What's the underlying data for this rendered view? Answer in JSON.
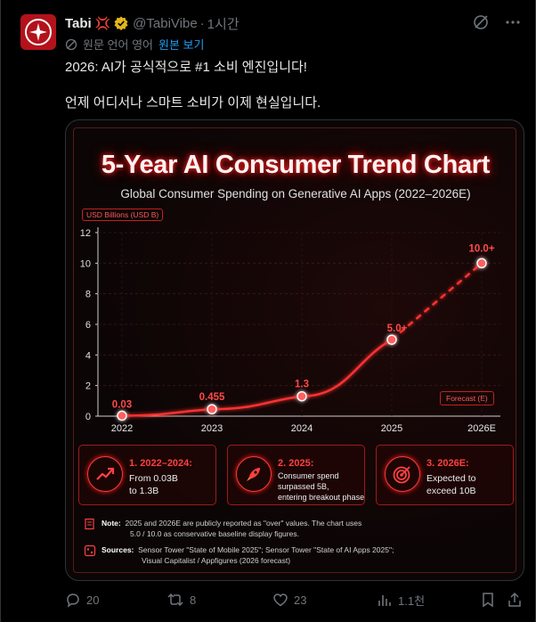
{
  "tweet": {
    "display_name": "Tabi",
    "name_emoji": "💢",
    "handle": "@TabiVibe",
    "separator": "·",
    "time": "1시간",
    "translate": {
      "text": "원문 언어 영어",
      "link": "원본 보기"
    },
    "line1": "2026: AI가 공식적으로 #1 소비 엔진입니다!",
    "line2": "언제 어디서나 스마트 소비가 이제 현실입니다."
  },
  "chart_data": {
    "type": "line",
    "title": "5-Year AI Consumer Trend Chart",
    "subtitle": "Global Consumer Spending on Generative AI Apps (2022–2026E)",
    "ylabel": "USD Billions (USD B)",
    "xlabel": "",
    "categories": [
      "2022",
      "2023",
      "2024",
      "2025",
      "2026E"
    ],
    "values": [
      0.03,
      0.455,
      1.3,
      5.0,
      10.0
    ],
    "data_labels": [
      "0.03",
      "0.455",
      "1.3",
      "5.0+",
      "10.0+"
    ],
    "ylim": [
      0,
      12
    ],
    "yticks": [
      "0",
      "2",
      "4",
      "6",
      "8",
      "10",
      "12"
    ],
    "forecast_label": "Forecast (E)",
    "grid": true,
    "colors": {
      "line": "#ff3030",
      "glow": "#ff0000",
      "text": "#ff4a4a"
    }
  },
  "milestones": [
    {
      "title": "1. 2022–2024:",
      "body": [
        "From 0.03B",
        "to 1.3B"
      ],
      "icon": "trend-up-icon"
    },
    {
      "title": "2. 2025:",
      "body": [
        "Consumer spend",
        "surpassed 5B,",
        "entering breakout phase"
      ],
      "icon": "rocket-icon"
    },
    {
      "title": "3. 2026E:",
      "body": [
        "Expected to",
        "exceed 10B"
      ],
      "icon": "target-icon"
    }
  ],
  "notes": {
    "note_label": "Note:",
    "note_line1": "2025 and 2026E are publicly reported as \"over\" values. The chart uses",
    "note_line2": "5.0 / 10.0 as conservative baseline display figures.",
    "sources_label": "Sources:",
    "sources_line1": "Sensor Tower \"State of Mobile 2025\";  Sensor Tower \"State of AI Apps 2025\";",
    "sources_line2": "Visual Capitalist / Appfigures  (2026 forecast)"
  },
  "actions": {
    "replies": "20",
    "reposts": "8",
    "likes": "23",
    "views": "1.1천"
  }
}
